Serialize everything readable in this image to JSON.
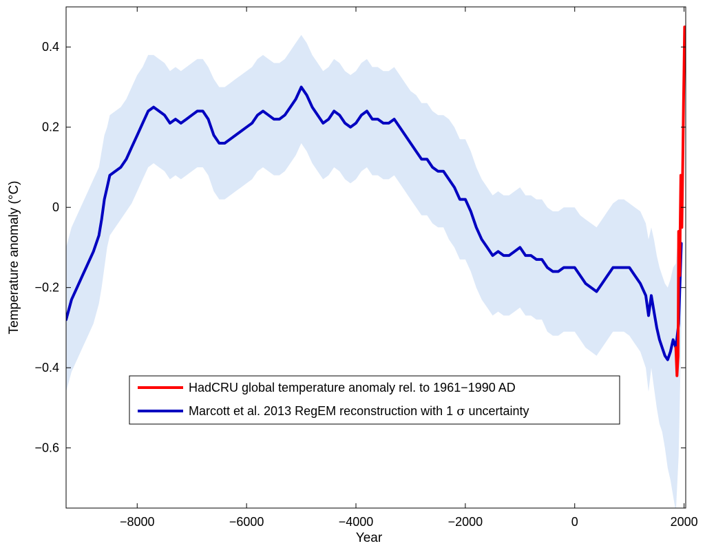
{
  "chart_data": {
    "type": "line",
    "title": "",
    "xlabel": "Year",
    "ylabel": "Temperature anomaly (°C)",
    "xlim": [
      -9300,
      2030
    ],
    "ylim": [
      -0.75,
      0.5
    ],
    "xticks": [
      -8000,
      -6000,
      -4000,
      -2000,
      0,
      2000
    ],
    "xtick_labels": [
      "−8000",
      "−6000",
      "−4000",
      "−2000",
      "0",
      "2000"
    ],
    "yticks": [
      -0.6,
      -0.4,
      -0.2,
      0,
      0.2,
      0.4
    ],
    "ytick_labels": [
      "−0.6",
      "−0.4",
      "−0.2",
      "0",
      "0.2",
      "0.4"
    ],
    "grid": false,
    "legend_position": "bottom-center",
    "legend": [
      {
        "label": "HadCRU global temperature anomaly rel. to 1961−1990 AD",
        "color": "#ff0000"
      },
      {
        "label_prefix": "Marcott et al. 2013 RegEM reconstruction with 1",
        "label_symbol": "σ",
        "label_suffix": "uncertainty",
        "color": "#0000c0"
      }
    ],
    "series": [
      {
        "color": "#0000c0",
        "x": [
          -9300,
          -9200,
          -9100,
          -9000,
          -8900,
          -8800,
          -8700,
          -8650,
          -8600,
          -8550,
          -8500,
          -8400,
          -8300,
          -8200,
          -8100,
          -8000,
          -7900,
          -7800,
          -7700,
          -7600,
          -7500,
          -7400,
          -7300,
          -7200,
          -7100,
          -7000,
          -6900,
          -6800,
          -6700,
          -6600,
          -6500,
          -6400,
          -6300,
          -6200,
          -6100,
          -6000,
          -5900,
          -5800,
          -5700,
          -5600,
          -5500,
          -5400,
          -5300,
          -5200,
          -5100,
          -5000,
          -4900,
          -4800,
          -4700,
          -4600,
          -4500,
          -4400,
          -4300,
          -4200,
          -4100,
          -4000,
          -3900,
          -3800,
          -3700,
          -3600,
          -3500,
          -3400,
          -3300,
          -3200,
          -3100,
          -3000,
          -2900,
          -2800,
          -2700,
          -2600,
          -2500,
          -2400,
          -2300,
          -2200,
          -2100,
          -2000,
          -1900,
          -1800,
          -1700,
          -1600,
          -1500,
          -1400,
          -1300,
          -1200,
          -1100,
          -1000,
          -900,
          -800,
          -700,
          -600,
          -500,
          -400,
          -300,
          -200,
          -100,
          0,
          100,
          200,
          300,
          400,
          500,
          600,
          700,
          800,
          900,
          1000,
          1100,
          1200,
          1300,
          1350,
          1400,
          1450,
          1500,
          1550,
          1600,
          1650,
          1700,
          1750,
          1800,
          1850,
          1900,
          1950
        ],
        "y": [
          -0.28,
          -0.23,
          -0.2,
          -0.17,
          -0.14,
          -0.11,
          -0.07,
          -0.03,
          0.02,
          0.05,
          0.08,
          0.09,
          0.1,
          0.12,
          0.15,
          0.18,
          0.21,
          0.24,
          0.25,
          0.24,
          0.23,
          0.21,
          0.22,
          0.21,
          0.22,
          0.23,
          0.24,
          0.24,
          0.22,
          0.18,
          0.16,
          0.16,
          0.17,
          0.18,
          0.19,
          0.2,
          0.21,
          0.23,
          0.24,
          0.23,
          0.22,
          0.22,
          0.23,
          0.25,
          0.27,
          0.3,
          0.28,
          0.25,
          0.23,
          0.21,
          0.22,
          0.24,
          0.23,
          0.21,
          0.2,
          0.21,
          0.23,
          0.24,
          0.22,
          0.22,
          0.21,
          0.21,
          0.22,
          0.2,
          0.18,
          0.16,
          0.14,
          0.12,
          0.12,
          0.1,
          0.09,
          0.09,
          0.07,
          0.05,
          0.02,
          0.02,
          -0.01,
          -0.05,
          -0.08,
          -0.1,
          -0.12,
          -0.11,
          -0.12,
          -0.12,
          -0.11,
          -0.1,
          -0.12,
          -0.12,
          -0.13,
          -0.13,
          -0.15,
          -0.16,
          -0.16,
          -0.15,
          -0.15,
          -0.15,
          -0.17,
          -0.19,
          -0.2,
          -0.21,
          -0.19,
          -0.17,
          -0.15,
          -0.15,
          -0.15,
          -0.15,
          -0.17,
          -0.19,
          -0.22,
          -0.27,
          -0.22,
          -0.26,
          -0.3,
          -0.33,
          -0.35,
          -0.37,
          -0.38,
          -0.36,
          -0.33,
          -0.35,
          -0.29,
          -0.09
        ]
      },
      {
        "color": "#ff0000",
        "x": [
          1850,
          1870,
          1890,
          1900,
          1910,
          1920,
          1930,
          1940,
          1950,
          1960,
          1970,
          1980,
          1990,
          2000,
          2010
        ],
        "y": [
          -0.35,
          -0.42,
          -0.37,
          -0.06,
          -0.14,
          -0.17,
          -0.03,
          0.08,
          0.0,
          -0.05,
          0.05,
          0.15,
          0.26,
          0.35,
          0.45
        ]
      }
    ],
    "band": {
      "color": "#dce8f8",
      "x": [
        -9300,
        -9200,
        -9100,
        -9000,
        -8900,
        -8800,
        -8700,
        -8650,
        -8600,
        -8550,
        -8500,
        -8400,
        -8300,
        -8200,
        -8100,
        -8000,
        -7900,
        -7800,
        -7700,
        -7600,
        -7500,
        -7400,
        -7300,
        -7200,
        -7100,
        -7000,
        -6900,
        -6800,
        -6700,
        -6600,
        -6500,
        -6400,
        -6300,
        -6200,
        -6100,
        -6000,
        -5900,
        -5800,
        -5700,
        -5600,
        -5500,
        -5400,
        -5300,
        -5200,
        -5100,
        -5000,
        -4900,
        -4800,
        -4700,
        -4600,
        -4500,
        -4400,
        -4300,
        -4200,
        -4100,
        -4000,
        -3900,
        -3800,
        -3700,
        -3600,
        -3500,
        -3400,
        -3300,
        -3200,
        -3100,
        -3000,
        -2900,
        -2800,
        -2700,
        -2600,
        -2500,
        -2400,
        -2300,
        -2200,
        -2100,
        -2000,
        -1900,
        -1800,
        -1700,
        -1600,
        -1500,
        -1400,
        -1300,
        -1200,
        -1100,
        -1000,
        -900,
        -800,
        -700,
        -600,
        -500,
        -400,
        -300,
        -200,
        -100,
        0,
        100,
        200,
        300,
        400,
        500,
        600,
        700,
        800,
        900,
        1000,
        1100,
        1200,
        1300,
        1350,
        1400,
        1450,
        1500,
        1550,
        1600,
        1650,
        1700,
        1750,
        1800,
        1850,
        1900,
        1950
      ],
      "upper": [
        -0.1,
        -0.05,
        -0.02,
        0.01,
        0.04,
        0.07,
        0.1,
        0.14,
        0.18,
        0.2,
        0.23,
        0.24,
        0.25,
        0.27,
        0.3,
        0.33,
        0.35,
        0.38,
        0.38,
        0.37,
        0.36,
        0.34,
        0.35,
        0.34,
        0.35,
        0.36,
        0.37,
        0.37,
        0.35,
        0.32,
        0.3,
        0.3,
        0.31,
        0.32,
        0.33,
        0.34,
        0.35,
        0.37,
        0.38,
        0.37,
        0.36,
        0.36,
        0.37,
        0.39,
        0.41,
        0.43,
        0.41,
        0.38,
        0.36,
        0.34,
        0.35,
        0.37,
        0.36,
        0.34,
        0.33,
        0.34,
        0.36,
        0.37,
        0.35,
        0.35,
        0.34,
        0.34,
        0.35,
        0.33,
        0.31,
        0.29,
        0.28,
        0.26,
        0.26,
        0.24,
        0.23,
        0.23,
        0.22,
        0.2,
        0.17,
        0.17,
        0.14,
        0.1,
        0.07,
        0.05,
        0.03,
        0.04,
        0.03,
        0.03,
        0.04,
        0.05,
        0.03,
        0.03,
        0.02,
        0.02,
        0.0,
        -0.01,
        -0.01,
        0.0,
        0.0,
        0.0,
        -0.02,
        -0.03,
        -0.04,
        -0.05,
        -0.03,
        -0.01,
        0.01,
        0.02,
        0.02,
        0.01,
        0.0,
        -0.01,
        -0.04,
        -0.08,
        -0.05,
        -0.08,
        -0.12,
        -0.15,
        -0.17,
        -0.19,
        -0.2,
        -0.18,
        -0.15,
        -0.14,
        -0.05,
        0.02
      ],
      "lower": [
        -0.46,
        -0.41,
        -0.38,
        -0.35,
        -0.32,
        -0.29,
        -0.24,
        -0.2,
        -0.15,
        -0.1,
        -0.07,
        -0.05,
        -0.03,
        -0.01,
        0.01,
        0.04,
        0.07,
        0.1,
        0.11,
        0.1,
        0.09,
        0.07,
        0.08,
        0.07,
        0.08,
        0.09,
        0.1,
        0.1,
        0.08,
        0.04,
        0.02,
        0.02,
        0.03,
        0.04,
        0.05,
        0.06,
        0.07,
        0.09,
        0.1,
        0.09,
        0.08,
        0.08,
        0.09,
        0.11,
        0.13,
        0.16,
        0.14,
        0.11,
        0.09,
        0.07,
        0.08,
        0.1,
        0.09,
        0.07,
        0.06,
        0.07,
        0.09,
        0.1,
        0.08,
        0.08,
        0.07,
        0.07,
        0.08,
        0.06,
        0.04,
        0.02,
        0.0,
        -0.02,
        -0.02,
        -0.04,
        -0.05,
        -0.05,
        -0.08,
        -0.1,
        -0.13,
        -0.13,
        -0.16,
        -0.2,
        -0.23,
        -0.25,
        -0.27,
        -0.26,
        -0.27,
        -0.27,
        -0.26,
        -0.25,
        -0.27,
        -0.27,
        -0.28,
        -0.28,
        -0.31,
        -0.32,
        -0.32,
        -0.31,
        -0.31,
        -0.31,
        -0.33,
        -0.35,
        -0.36,
        -0.37,
        -0.35,
        -0.33,
        -0.31,
        -0.31,
        -0.31,
        -0.32,
        -0.34,
        -0.36,
        -0.4,
        -0.46,
        -0.4,
        -0.45,
        -0.5,
        -0.54,
        -0.56,
        -0.6,
        -0.65,
        -0.68,
        -0.72,
        -0.76,
        -0.62,
        -0.3
      ]
    }
  }
}
